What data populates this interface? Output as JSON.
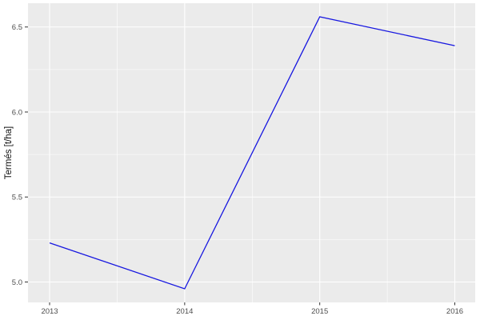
{
  "chart_data": {
    "type": "line",
    "title": "",
    "xlabel": "",
    "ylabel": "Termés [t/ha]",
    "x": [
      2013,
      2014,
      2015,
      2016
    ],
    "x_tick_labels": [
      "2013",
      "2014",
      "2015",
      "2016"
    ],
    "y_ticks": [
      5.0,
      5.5,
      6.0,
      6.5
    ],
    "y_tick_labels": [
      "5.0",
      "5.5",
      "6.0",
      "6.5"
    ],
    "x_minor": [
      2013.5,
      2014.5,
      2015.5
    ],
    "y_minor": [
      5.25,
      5.75,
      6.25
    ],
    "xlim": [
      2012.84,
      2016.151
    ],
    "ylim": [
      4.88,
      6.64
    ],
    "series": [
      {
        "name": "Termés",
        "values": [
          5.23,
          4.96,
          6.56,
          6.39
        ]
      }
    ],
    "grid": "on",
    "legend": "none",
    "colors": {
      "line": "#1717E0",
      "panel_bg": "#EBEBEB",
      "grid": "#FFFFFF",
      "tick": "#333333",
      "tick_label": "#4D4D4D",
      "axis_title": "#111111",
      "background": "#FFFFFF"
    }
  }
}
